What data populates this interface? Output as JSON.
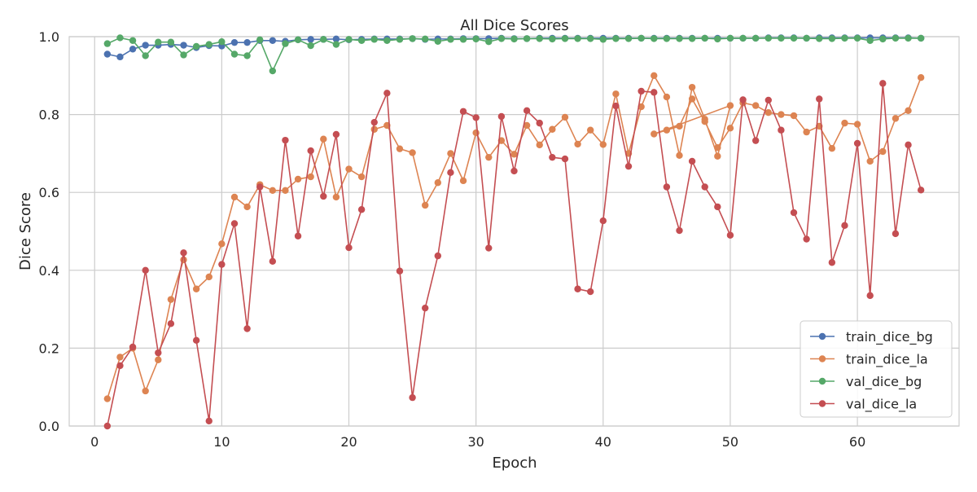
{
  "chart_data": {
    "type": "line",
    "title": "All Dice Scores",
    "xlabel": "Epoch",
    "ylabel": "Dice Score",
    "xlim": [
      -2,
      68
    ],
    "ylim": [
      0.0,
      1.0
    ],
    "xticks": [
      0,
      10,
      20,
      30,
      40,
      50,
      60
    ],
    "yticks": [
      0.0,
      0.2,
      0.4,
      0.6,
      0.8,
      1.0
    ],
    "xtick_labels": [
      "0",
      "10",
      "20",
      "30",
      "40",
      "50",
      "60"
    ],
    "ytick_labels": [
      "0.0",
      "0.2",
      "0.4",
      "0.6",
      "0.8",
      "1.0"
    ],
    "grid": true,
    "legend_position": "lower-right",
    "marker": "circle",
    "series": [
      {
        "name": "train_dice_bg",
        "color": "#4c72b0",
        "x": [
          1,
          2,
          3,
          4,
          5,
          6,
          7,
          8,
          9,
          10,
          11,
          12,
          13,
          14,
          15,
          16,
          17,
          18,
          19,
          20,
          21,
          22,
          23,
          24,
          25,
          26,
          27,
          28,
          29,
          30,
          31,
          32,
          33,
          34,
          35,
          36,
          37,
          38,
          39,
          40,
          41,
          42,
          43,
          44,
          45,
          46,
          47,
          48,
          49,
          50,
          51,
          52,
          53,
          54,
          55,
          56,
          57,
          58,
          59,
          60,
          61,
          62,
          63,
          64,
          65
        ],
        "values": [
          0.955,
          0.948,
          0.968,
          0.978,
          0.978,
          0.98,
          0.978,
          0.972,
          0.977,
          0.976,
          0.985,
          0.985,
          0.99,
          0.99,
          0.988,
          0.992,
          0.993,
          0.993,
          0.994,
          0.992,
          0.993,
          0.994,
          0.994,
          0.994,
          0.995,
          0.993,
          0.994,
          0.994,
          0.995,
          0.995,
          0.995,
          0.996,
          0.995,
          0.995,
          0.996,
          0.996,
          0.996,
          0.996,
          0.996,
          0.996,
          0.996,
          0.996,
          0.996,
          0.996,
          0.996,
          0.996,
          0.996,
          0.996,
          0.996,
          0.996,
          0.996,
          0.996,
          0.997,
          0.997,
          0.997,
          0.996,
          0.997,
          0.997,
          0.997,
          0.997,
          0.997,
          0.997,
          0.997,
          0.997,
          0.996
        ]
      },
      {
        "name": "train_dice_la",
        "color": "#dd8452",
        "x": [
          1,
          2,
          3,
          4,
          5,
          6,
          7,
          8,
          9,
          10,
          11,
          12,
          13,
          14,
          15,
          16,
          17,
          18,
          19,
          20,
          21,
          22,
          23,
          24,
          25,
          26,
          27,
          28,
          29,
          30,
          31,
          32,
          33,
          34,
          35,
          36,
          37,
          38,
          39,
          40,
          41,
          42,
          43,
          44,
          45,
          46,
          47,
          48,
          49,
          50,
          44,
          45,
          46,
          47,
          48,
          49,
          50,
          51,
          52,
          53,
          54,
          55,
          56,
          57,
          58,
          59,
          60,
          61,
          62,
          63,
          64,
          65
        ],
        "values": [
          0.07,
          0.177,
          0.2,
          0.09,
          0.17,
          0.325,
          0.427,
          0.352,
          0.383,
          0.468,
          0.588,
          0.563,
          0.62,
          0.605,
          0.605,
          0.634,
          0.64,
          0.737,
          0.588,
          0.66,
          0.64,
          0.762,
          0.772,
          0.712,
          0.702,
          0.567,
          0.625,
          0.7,
          0.63,
          0.753,
          0.69,
          0.733,
          0.698,
          0.772,
          0.722,
          0.762,
          0.793,
          0.724,
          0.76,
          0.723,
          0.853,
          0.7,
          0.82,
          0.9,
          0.845,
          0.695,
          0.87,
          0.788,
          0.693,
          0.823,
          0.75,
          0.76,
          0.77,
          0.84,
          0.782,
          0.715,
          0.765,
          0.83,
          0.823,
          0.805,
          0.8,
          0.797,
          0.755,
          0.77,
          0.713,
          0.778,
          0.775,
          0.68,
          0.705,
          0.79,
          0.81,
          0.895
        ]
      },
      {
        "name": "val_dice_bg",
        "color": "#55a868",
        "x": [
          1,
          2,
          3,
          4,
          5,
          6,
          7,
          8,
          9,
          10,
          11,
          12,
          13,
          14,
          15,
          16,
          17,
          18,
          19,
          20,
          21,
          22,
          23,
          24,
          25,
          26,
          27,
          28,
          29,
          30,
          31,
          32,
          33,
          34,
          35,
          36,
          37,
          38,
          39,
          40,
          41,
          42,
          43,
          44,
          45,
          46,
          47,
          48,
          49,
          50,
          51,
          52,
          53,
          54,
          55,
          56,
          57,
          58,
          59,
          60,
          61,
          62,
          63,
          64,
          65
        ],
        "values": [
          0.982,
          0.997,
          0.99,
          0.951,
          0.986,
          0.986,
          0.953,
          0.975,
          0.98,
          0.987,
          0.955,
          0.951,
          0.992,
          0.912,
          0.982,
          0.992,
          0.977,
          0.993,
          0.98,
          0.993,
          0.99,
          0.993,
          0.99,
          0.993,
          0.995,
          0.994,
          0.988,
          0.993,
          0.993,
          0.994,
          0.987,
          0.995,
          0.994,
          0.995,
          0.995,
          0.994,
          0.995,
          0.995,
          0.995,
          0.993,
          0.995,
          0.995,
          0.996,
          0.995,
          0.995,
          0.995,
          0.995,
          0.996,
          0.994,
          0.996,
          0.996,
          0.996,
          0.996,
          0.996,
          0.996,
          0.996,
          0.995,
          0.995,
          0.996,
          0.996,
          0.99,
          0.994,
          0.996,
          0.996,
          0.996
        ]
      },
      {
        "name": "val_dice_la",
        "color": "#c44e52",
        "x": [
          1,
          2,
          3,
          4,
          5,
          6,
          7,
          8,
          9,
          10,
          11,
          12,
          13,
          14,
          15,
          16,
          17,
          18,
          19,
          20,
          21,
          22,
          23,
          24,
          25,
          26,
          27,
          28,
          29,
          30,
          31,
          32,
          33,
          34,
          35,
          36,
          37,
          38,
          39,
          40,
          41,
          42,
          43,
          44,
          45,
          46,
          47,
          48,
          49,
          50,
          51,
          52,
          53,
          54,
          55,
          56,
          57,
          58,
          59,
          60,
          61,
          62,
          63,
          64,
          65
        ],
        "values": [
          0.0,
          0.155,
          0.203,
          0.4,
          0.188,
          0.263,
          0.445,
          0.22,
          0.013,
          0.415,
          0.52,
          0.25,
          0.614,
          0.423,
          0.734,
          0.488,
          0.707,
          0.59,
          0.749,
          0.458,
          0.556,
          0.78,
          0.855,
          0.398,
          0.073,
          0.303,
          0.437,
          0.651,
          0.808,
          0.792,
          0.457,
          0.795,
          0.655,
          0.81,
          0.778,
          0.69,
          0.686,
          0.352,
          0.345,
          0.527,
          0.822,
          0.667,
          0.86,
          0.857,
          0.614,
          0.502,
          0.68,
          0.614,
          0.563,
          0.49,
          0.838,
          0.733,
          0.837,
          0.76,
          0.548,
          0.48,
          0.84,
          0.42,
          0.515,
          0.726,
          0.335,
          0.88,
          0.494,
          0.722,
          0.606
        ]
      }
    ]
  }
}
